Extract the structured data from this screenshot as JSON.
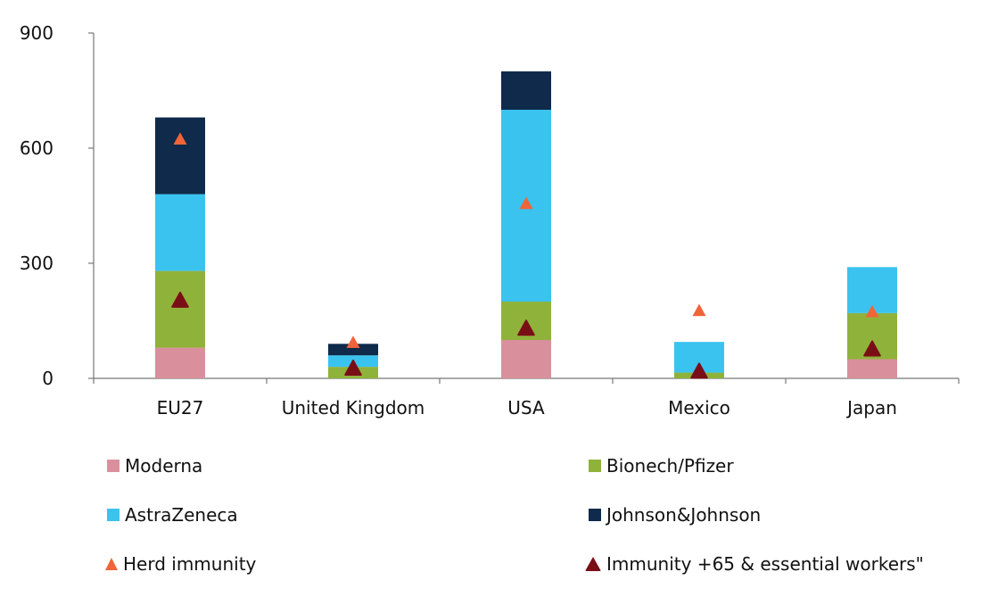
{
  "chart_data": {
    "type": "bar",
    "stacked": true,
    "categories": [
      "EU27",
      "United Kingdom",
      "USA",
      "Mexico",
      "Japan"
    ],
    "ylim": [
      0,
      900
    ],
    "yticks": [
      0,
      300,
      600,
      900
    ],
    "series": [
      {
        "name": "Moderna",
        "color": "#d9909c",
        "values": [
          80,
          0,
          100,
          0,
          50
        ]
      },
      {
        "name": "Bionech/Pfizer",
        "color": "#8fb23a",
        "values": [
          200,
          30,
          100,
          15,
          120
        ]
      },
      {
        "name": "AstraZeneca",
        "color": "#3ac3ef",
        "values": [
          200,
          30,
          500,
          80,
          120
        ]
      },
      {
        "name": "Johnson&Johnson",
        "color": "#0f2a4a",
        "values": [
          200,
          30,
          100,
          0,
          0
        ]
      }
    ],
    "markers": [
      {
        "name": "Herd immunity",
        "color": "#f0643a",
        "values": [
          625,
          95,
          457,
          178,
          175
        ]
      },
      {
        "name": "Immunity +65 & essential workers\"",
        "color": "#7a0e16",
        "values": [
          205,
          28,
          132,
          20,
          78
        ]
      }
    ],
    "legend_position": "bottom",
    "grid": false
  }
}
